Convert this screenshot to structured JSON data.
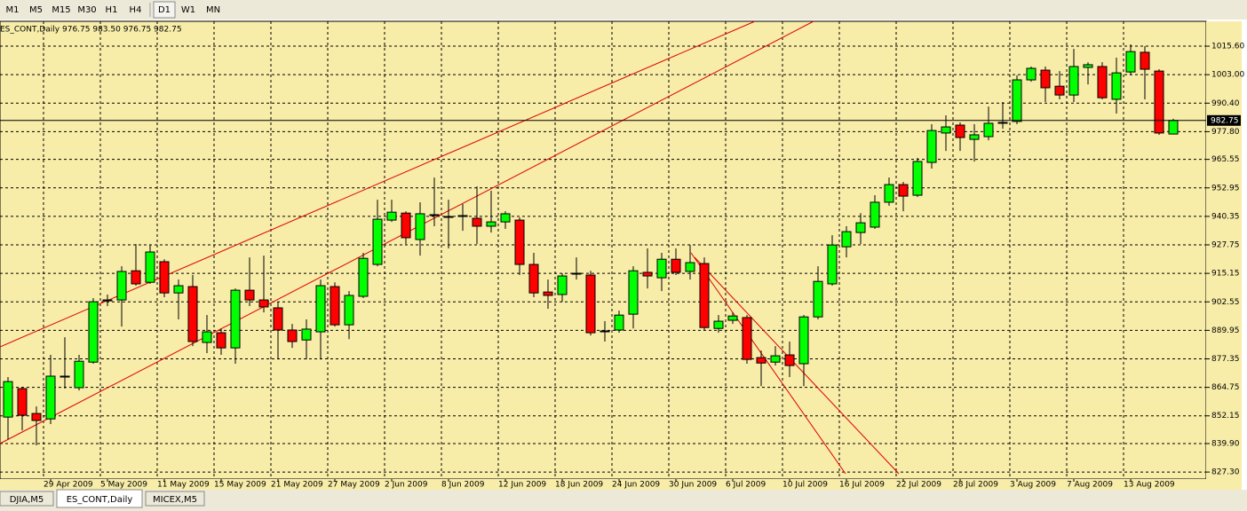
{
  "toolbar": {
    "buttons": [
      "M1",
      "M5",
      "M15",
      "M30",
      "H1",
      "H4",
      "D1",
      "W1",
      "MN"
    ],
    "active": "D1"
  },
  "tabs": {
    "items": [
      "DJIA,M5",
      "ES_CONT,Daily",
      "MICEX,M5"
    ],
    "active": "ES_CONT,Daily"
  },
  "chart_data": {
    "type": "candlestick",
    "title": "ES_CONT,Daily  976.75 983.50 976.75 982.75",
    "categories": [
      null,
      null,
      null,
      "29 Apr 2009",
      null,
      null,
      null,
      "5 May 2009",
      null,
      null,
      null,
      "11 May 2009",
      null,
      null,
      null,
      "15 May 2009",
      null,
      null,
      null,
      "21 May 2009",
      null,
      null,
      null,
      "27 May 2009",
      null,
      null,
      null,
      "2 Jun 2009",
      null,
      null,
      null,
      "8 Jun 2009",
      null,
      null,
      null,
      "12 Jun 2009",
      null,
      null,
      null,
      "18 Jun 2009",
      null,
      null,
      null,
      "24 Jun 2009",
      null,
      null,
      null,
      "30 Jun 2009",
      null,
      null,
      null,
      "6 Jul 2009",
      null,
      null,
      null,
      "10 Jul 2009",
      null,
      null,
      null,
      "16 Jul 2009",
      null,
      null,
      null,
      "22 Jul 2009",
      null,
      null,
      null,
      "28 Jul 2009",
      null,
      null,
      null,
      "3 Aug 2009",
      null,
      null,
      null,
      "7 Aug 2009",
      null,
      null,
      null,
      "13 Aug 2009",
      null,
      null,
      null
    ],
    "open": [
      851.6,
      864.2,
      853.2,
      850.8,
      869.3,
      864.6,
      875.9,
      903.0,
      903.4,
      916.3,
      911.2,
      920.3,
      906.5,
      909.3,
      884.6,
      888.9,
      882.2,
      907.7,
      903.4,
      899.9,
      890.1,
      885.7,
      889.3,
      909.3,
      892.4,
      905.0,
      919.1,
      938.7,
      941.8,
      930.1,
      940.7,
      940.3,
      940.3,
      939.5,
      936.0,
      937.9,
      938.7,
      919.1,
      906.9,
      905.8,
      914.8,
      914.4,
      889.3,
      890.1,
      897.1,
      915.6,
      913.2,
      921.4,
      916.0,
      919.5,
      890.8,
      894.4,
      895.6,
      877.9,
      875.9,
      879.1,
      875.2,
      895.9,
      910.5,
      926.9,
      933.2,
      935.6,
      946.6,
      954.4,
      949.7,
      964.2,
      977.2,
      980.7,
      974.4,
      975.6,
      981.5,
      982.3,
      1000.7,
      1005.0,
      997.9,
      994.0,
      1006.2,
      1006.6,
      992.1,
      1004.2,
      1012.9,
      1004.6,
      976.75
    ],
    "high": [
      869.3,
      865.0,
      856.3,
      879.1,
      886.9,
      879.1,
      904.2,
      905.8,
      918.3,
      928.1,
      927.7,
      921.4,
      912.4,
      914.4,
      896.7,
      890.8,
      908.5,
      922.2,
      923.0,
      902.6,
      892.8,
      894.8,
      912.4,
      911.2,
      907.3,
      924.2,
      947.7,
      947.7,
      942.6,
      946.6,
      957.5,
      947.7,
      945.8,
      953.6,
      951.7,
      942.6,
      939.9,
      924.2,
      912.4,
      915.2,
      922.2,
      916.3,
      894.0,
      898.7,
      918.3,
      926.2,
      924.2,
      926.2,
      927.7,
      922.2,
      896.7,
      897.9,
      896.7,
      881.0,
      883.0,
      885.0,
      896.7,
      918.3,
      932.0,
      936.0,
      941.8,
      949.7,
      957.5,
      955.6,
      966.2,
      981.1,
      985.0,
      981.9,
      981.1,
      988.9,
      990.9,
      1002.7,
      1006.6,
      1006.6,
      1004.6,
      1014.4,
      1008.5,
      1008.5,
      1010.5,
      1016.4,
      1015.6,
      1005.4,
      983.5
    ],
    "low": [
      841.8,
      845.7,
      839.1,
      848.5,
      864.2,
      863.4,
      875.2,
      900.7,
      891.6,
      909.7,
      910.5,
      904.6,
      894.8,
      883.0,
      879.9,
      879.1,
      875.2,
      900.7,
      897.9,
      877.1,
      882.2,
      877.1,
      877.1,
      891.6,
      886.1,
      904.2,
      918.3,
      937.9,
      928.1,
      923.0,
      936.0,
      926.2,
      934.0,
      928.1,
      933.2,
      934.8,
      914.4,
      904.6,
      899.5,
      902.6,
      912.4,
      887.7,
      885.0,
      888.9,
      890.8,
      908.5,
      907.3,
      914.4,
      912.4,
      890.1,
      888.9,
      892.8,
      875.2,
      865.3,
      874.4,
      869.3,
      865.3,
      894.8,
      909.7,
      922.2,
      928.1,
      934.8,
      945.0,
      942.6,
      948.9,
      961.5,
      969.3,
      969.3,
      964.6,
      974.0,
      979.1,
      981.1,
      999.9,
      990.9,
      992.1,
      990.9,
      998.7,
      992.1,
      985.8,
      1002.7,
      992.1,
      976.4,
      976.75
    ],
    "close": [
      867.3,
      852.4,
      850.1,
      869.7,
      869.7,
      876.3,
      902.6,
      903.4,
      916.0,
      910.5,
      924.6,
      906.5,
      909.7,
      885.0,
      889.3,
      882.2,
      907.7,
      903.4,
      900.3,
      890.1,
      885.0,
      890.5,
      909.7,
      892.4,
      905.4,
      921.8,
      939.1,
      942.2,
      930.9,
      941.5,
      941.1,
      939.9,
      940.7,
      936.0,
      937.9,
      941.5,
      919.1,
      906.5,
      905.4,
      914.0,
      915.2,
      888.9,
      889.7,
      896.7,
      916.3,
      914.0,
      921.4,
      915.6,
      919.9,
      891.2,
      894.0,
      896.3,
      877.1,
      875.5,
      878.7,
      874.4,
      895.9,
      911.6,
      927.7,
      933.6,
      937.5,
      946.6,
      954.4,
      949.3,
      964.6,
      978.3,
      979.9,
      975.2,
      976.4,
      981.5,
      981.9,
      1000.7,
      1005.8,
      997.2,
      994.0,
      1006.6,
      1007.4,
      992.8,
      1003.8,
      1013.2,
      1005.4,
      977.2,
      982.75
    ],
    "up_color": "#00ff00",
    "down_color": "#ff0000",
    "current_price": 982.75,
    "ylim": [
      824.2,
      1026.6
    ],
    "yticks": [
      {
        "value": 1015.6,
        "label": "1015.60"
      },
      {
        "value": 1003,
        "label": "1003.00"
      },
      {
        "value": 990.4,
        "label": "990.40"
      },
      {
        "value": 977.8,
        "label": "977.80"
      },
      965.55,
      952.95,
      940.35,
      927.75,
      915.15,
      902.55,
      889.95,
      877.35,
      864.75,
      852.15,
      {
        "value": 839.9,
        "label": "839.90"
      },
      {
        "value": 827.3,
        "label": "827.30"
      }
    ],
    "grid": true
  }
}
